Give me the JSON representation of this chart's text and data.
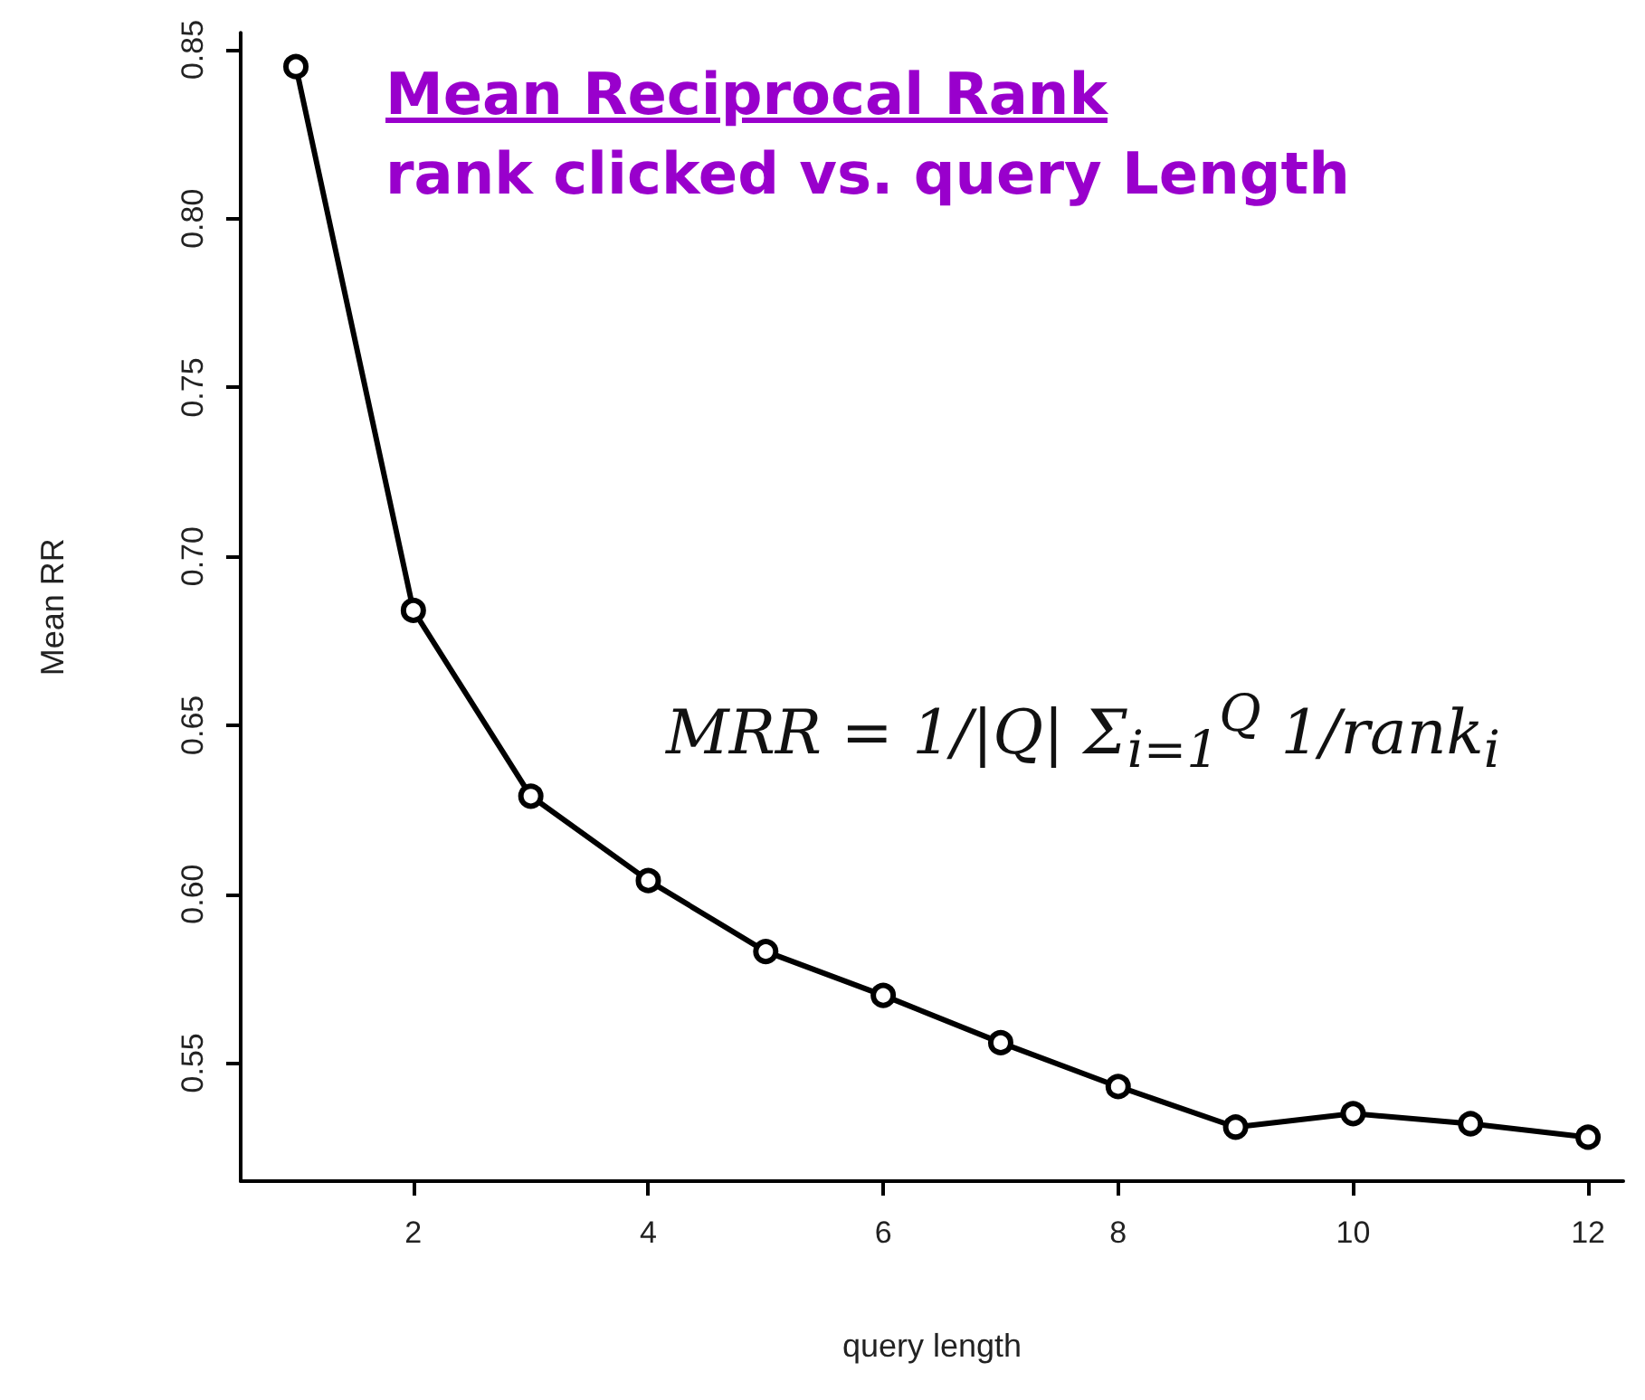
{
  "chart_data": {
    "type": "line",
    "title": "Mean Reciprocal Rank",
    "subtitle": "rank clicked vs. query Length",
    "xlabel": "query length",
    "ylabel": "Mean RR",
    "annotations": [
      "MRR = 1/|Q| Σ$_{i=1}$$^{Q}$ 1/rank$_{i}$"
    ],
    "x": [
      1,
      2,
      3,
      4,
      5,
      6,
      7,
      8,
      9,
      10,
      11,
      12
    ],
    "values": [
      0.845,
      0.684,
      0.629,
      0.604,
      0.583,
      0.57,
      0.556,
      0.543,
      0.531,
      0.535,
      0.532,
      0.528
    ],
    "color": "#000000",
    "xlim": [
      0.53,
      12.3
    ],
    "xticks": [
      2,
      4,
      6,
      8,
      10,
      12
    ],
    "ylim": [
      0.515,
      0.855
    ],
    "yticks": [
      {
        "value": 0.55,
        "label": "0.55"
      },
      {
        "value": 0.6,
        "label": "0.60"
      },
      {
        "value": 0.65,
        "label": "0.65"
      },
      {
        "value": 0.7,
        "label": "0.70"
      },
      {
        "value": 0.75,
        "label": "0.75"
      },
      {
        "value": 0.8,
        "label": "0.80"
      },
      {
        "value": 0.85,
        "label": "0.85"
      }
    ],
    "marker": "circle",
    "line_style": "solid",
    "grid": false
  }
}
